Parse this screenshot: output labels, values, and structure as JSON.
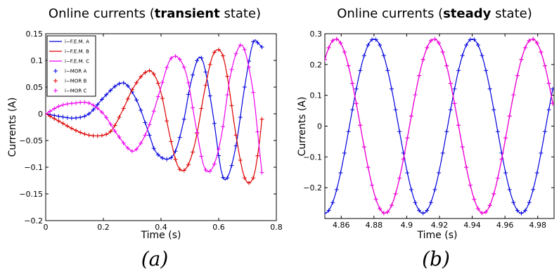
{
  "chart_data": [
    {
      "type": "line",
      "title_prefix": "Online currents (",
      "title_bold": "transient",
      "title_suffix": " state)",
      "xlabel": "Time (s)",
      "ylabel": "Currents (A)",
      "caption": "(a)",
      "xlim": [
        0,
        0.8
      ],
      "ylim": [
        -0.2,
        0.15
      ],
      "xticks": [
        0,
        0.2,
        0.4,
        0.6,
        0.8
      ],
      "xtick_labels": [
        "0",
        "0.2",
        "0.4",
        "0.6",
        "0.8"
      ],
      "yticks": [
        -0.2,
        -0.15,
        -0.1,
        -0.05,
        0,
        0.05,
        0.1,
        0.15
      ],
      "ytick_labels": [
        "−0.2",
        "−0.15",
        "−0.1",
        "−0.05",
        "0",
        "0.05",
        "0.1",
        "0.15"
      ],
      "legend_position": "top-left",
      "legend": [
        {
          "label": "i−F.E.M. A",
          "color": "#0000dd",
          "marker": "line"
        },
        {
          "label": "i−F.E.M. B",
          "color": "#dd0000",
          "marker": "line"
        },
        {
          "label": "i−F.E.M. C",
          "color": "#ee00ee",
          "marker": "line"
        },
        {
          "label": "i−MOR A",
          "color": "#0000dd",
          "marker": "plus"
        },
        {
          "label": "i−MOR B",
          "color": "#dd0000",
          "marker": "plus"
        },
        {
          "label": "i−MOR C",
          "color": "#ee00ee",
          "marker": "plus"
        }
      ],
      "series": [
        {
          "color": "#0000dd",
          "x": [
            0,
            0.05,
            0.1,
            0.15,
            0.2,
            0.25,
            0.28,
            0.32,
            0.36,
            0.38,
            0.42,
            0.45,
            0.48,
            0.5,
            0.53,
            0.55,
            0.58,
            0.61,
            0.63,
            0.66,
            0.69,
            0.72,
            0.74,
            0.75
          ],
          "y": [
            0,
            -0.005,
            -0.008,
            0.0,
            0.03,
            0.055,
            0.055,
            0.02,
            -0.04,
            -0.07,
            -0.085,
            -0.07,
            -0.01,
            0.05,
            0.105,
            0.09,
            0.0,
            -0.11,
            -0.12,
            -0.06,
            0.05,
            0.135,
            0.13,
            0.125
          ]
        },
        {
          "color": "#dd0000",
          "x": [
            0,
            0.05,
            0.1,
            0.15,
            0.2,
            0.23,
            0.27,
            0.3,
            0.34,
            0.37,
            0.4,
            0.43,
            0.46,
            0.49,
            0.52,
            0.55,
            0.58,
            0.61,
            0.63,
            0.66,
            0.69,
            0.72,
            0.74,
            0.75
          ],
          "y": [
            0,
            -0.015,
            -0.03,
            -0.04,
            -0.04,
            -0.03,
            0.01,
            0.045,
            0.075,
            0.078,
            0.04,
            -0.04,
            -0.1,
            -0.1,
            -0.05,
            0.04,
            0.11,
            0.115,
            0.07,
            -0.04,
            -0.12,
            -0.12,
            -0.06,
            -0.01
          ]
        },
        {
          "color": "#ee00ee",
          "x": [
            0,
            0.05,
            0.1,
            0.15,
            0.2,
            0.25,
            0.3,
            0.33,
            0.36,
            0.4,
            0.43,
            0.46,
            0.49,
            0.52,
            0.55,
            0.58,
            0.61,
            0.64,
            0.67,
            0.69,
            0.72,
            0.74,
            0.75
          ],
          "y": [
            0,
            0.015,
            0.02,
            0.02,
            0.0,
            -0.04,
            -0.07,
            -0.055,
            -0.02,
            0.05,
            0.1,
            0.105,
            0.07,
            -0.02,
            -0.1,
            -0.1,
            -0.04,
            0.07,
            0.125,
            0.12,
            0.04,
            -0.06,
            -0.11
          ]
        }
      ]
    },
    {
      "type": "line",
      "title_prefix": "Online currents (",
      "title_bold": "steady",
      "title_suffix": " state)",
      "xlabel": "Time (s)",
      "ylabel": "Currents (A)",
      "caption": "(b)",
      "xlim": [
        4.85,
        4.99
      ],
      "ylim": [
        -0.3,
        0.3
      ],
      "xticks": [
        4.86,
        4.88,
        4.9,
        4.92,
        4.94,
        4.96,
        4.98
      ],
      "xtick_labels": [
        "4.86",
        "4.88",
        "4.9",
        "4.92",
        "4.94",
        "4.96",
        "4.98"
      ],
      "yticks": [
        -0.2,
        -0.1,
        0,
        0.1,
        0.2,
        0.3
      ],
      "ytick_labels": [
        "−0.2",
        "−0.1",
        "0",
        "0.1",
        "0.2",
        "0.3"
      ],
      "amplitude": 0.283,
      "period": 0.06,
      "series": [
        {
          "color": "#0000dd",
          "peak_t": 4.88
        },
        {
          "color": "#dd0000",
          "peak_t": 4.9167
        },
        {
          "color": "#ee00ee",
          "peak_t": 4.8567
        }
      ]
    }
  ]
}
